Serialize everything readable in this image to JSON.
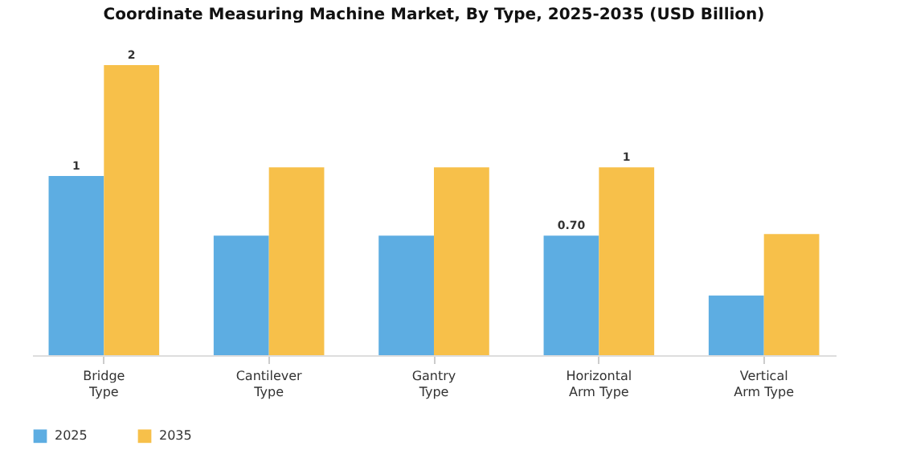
{
  "chart_data": {
    "type": "bar",
    "title": "Coordinate Measuring Machine Market, By Type, 2025-2035 (USD Billion)",
    "categories": [
      "Bridge Type",
      "Cantilever Type",
      "Gantry Type",
      "Horizontal Arm Type",
      "Vertical Arm Type"
    ],
    "series": [
      {
        "name": "2025",
        "color": "#5dade2",
        "values": [
          1.05,
          0.7,
          0.7,
          0.7,
          0.35
        ],
        "value_labels": [
          "1",
          null,
          null,
          "0.70",
          null
        ]
      },
      {
        "name": "2035",
        "color": "#f7c04a",
        "values": [
          1.7,
          1.1,
          1.1,
          1.1,
          0.71
        ],
        "value_labels": [
          "2",
          null,
          null,
          "1",
          null
        ]
      }
    ],
    "legend": "bottom"
  }
}
